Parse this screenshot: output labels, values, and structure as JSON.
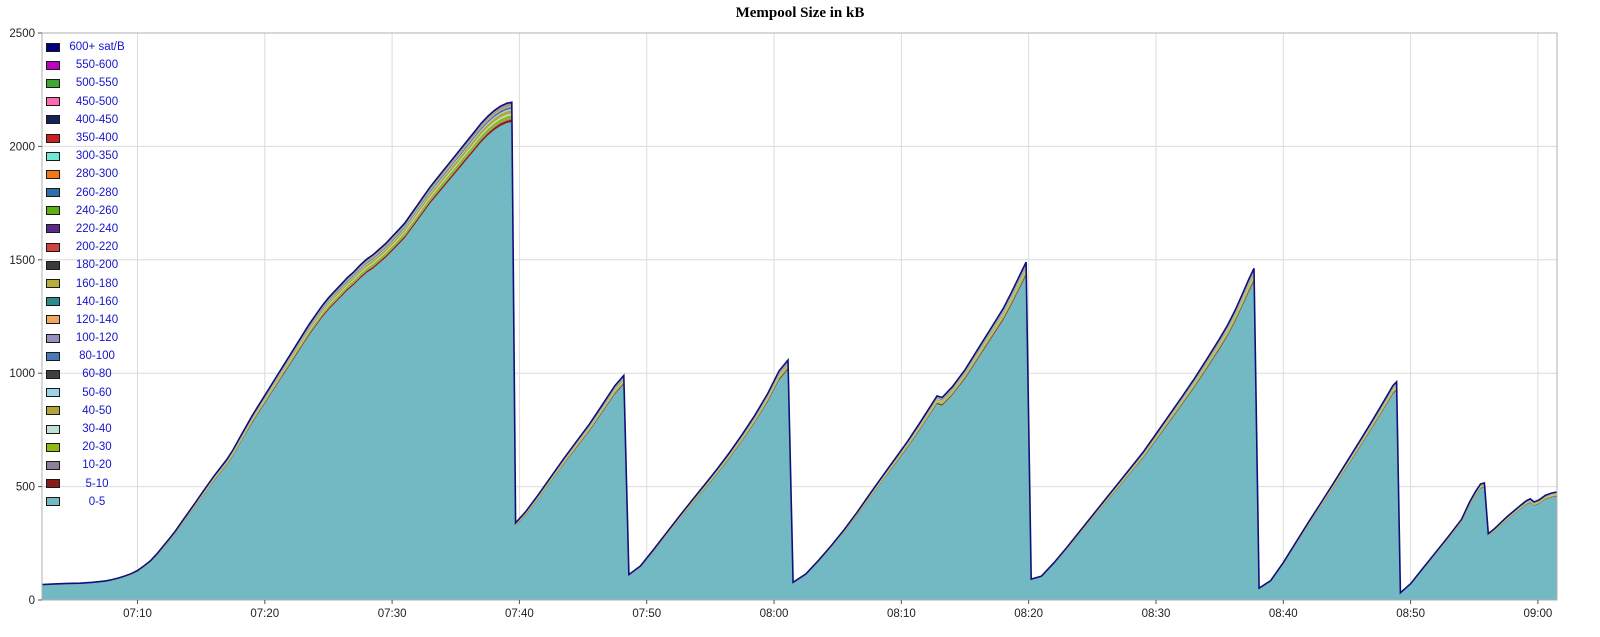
{
  "title": "Mempool Size in kB",
  "chart_data": {
    "type": "area",
    "stacked": true,
    "title": "Mempool Size in kB",
    "xlabel": "",
    "ylabel": "",
    "y_unit": "kB",
    "x_unit": "time of day (HH:MM)",
    "ylim": [
      0,
      2500
    ],
    "y_ticks": [
      0,
      500,
      1000,
      1500,
      2000,
      2500
    ],
    "x_ticks": [
      "07:10",
      "07:20",
      "07:30",
      "07:40",
      "07:50",
      "08:00",
      "08:10",
      "08:20",
      "08:30",
      "08:40",
      "08:50",
      "09:00"
    ],
    "x_tick_minutes": [
      10,
      20,
      30,
      40,
      50,
      60,
      70,
      80,
      90,
      100,
      110,
      120
    ],
    "x_range_minutes": [
      2.5,
      121.5
    ],
    "grid": true,
    "legend_position": "top-left",
    "legend": [
      {
        "label": "600+ sat/B",
        "color": "#000080",
        "fraction": 0.0015
      },
      {
        "label": "550-600",
        "color": "#bf00bf",
        "fraction": 0.0002
      },
      {
        "label": "500-550",
        "color": "#3fa535",
        "fraction": 0.0003
      },
      {
        "label": "450-500",
        "color": "#ff69b4",
        "fraction": 0.0003
      },
      {
        "label": "400-450",
        "color": "#14225a",
        "fraction": 0.0004
      },
      {
        "label": "350-400",
        "color": "#cc1f1f",
        "fraction": 0.0004
      },
      {
        "label": "300-350",
        "color": "#6fe8d8",
        "fraction": 0.0004
      },
      {
        "label": "280-300",
        "color": "#f07818",
        "fraction": 0.0004
      },
      {
        "label": "260-280",
        "color": "#2f6fa8",
        "fraction": 0.0004
      },
      {
        "label": "240-260",
        "color": "#5fae12",
        "fraction": 0.0004
      },
      {
        "label": "220-240",
        "color": "#5b2a86",
        "fraction": 0.0004
      },
      {
        "label": "200-220",
        "color": "#d14343",
        "fraction": 0.0004
      },
      {
        "label": "180-200",
        "color": "#3a3a3a",
        "fraction": 0.0004
      },
      {
        "label": "160-180",
        "color": "#b8ae3c",
        "fraction": 0.0008
      },
      {
        "label": "140-160",
        "color": "#2e8b8b",
        "fraction": 0.0008
      },
      {
        "label": "120-140",
        "color": "#f0a860",
        "fraction": 0.001
      },
      {
        "label": "100-120",
        "color": "#9b8fc0",
        "fraction": 0.001
      },
      {
        "label": "80-100",
        "color": "#4a7ab5",
        "fraction": 0.002
      },
      {
        "label": "60-80",
        "color": "#3f3f3f",
        "fraction": 0.0015
      },
      {
        "label": "50-60",
        "color": "#9fd4e8",
        "fraction": 0.003
      },
      {
        "label": "40-50",
        "color": "#b3a43b",
        "fraction": 0.007
      },
      {
        "label": "30-40",
        "color": "#bfe0d8",
        "fraction": 0.003
      },
      {
        "label": "20-30",
        "color": "#8fba16",
        "fraction": 0.007
      },
      {
        "label": "10-20",
        "color": "#8f7f96",
        "fraction": 0.002
      },
      {
        "label": "5-10",
        "color": "#8b1a1a",
        "fraction": 0.005
      },
      {
        "label": "0-5",
        "color": "#72b9c3",
        "fraction": 0.962
      }
    ],
    "outline_color": "#10107a",
    "grid_color": "#dcdcdc",
    "border_color": "#b0b0b0",
    "tick_text_color": "#222222",
    "total_series_note": "Total mempool size in kB over time; sawtooth drops occur when blocks are mined. Composition is dominated by the 0-5 sat/B band; fractions of other bands are visual estimates of the thin top stripes.",
    "points_minutes_kb": [
      [
        2.5,
        68
      ],
      [
        3.5,
        71
      ],
      [
        4.5,
        73
      ],
      [
        5.5,
        74
      ],
      [
        6.5,
        78
      ],
      [
        7.5,
        84
      ],
      [
        8,
        90
      ],
      [
        8.5,
        97
      ],
      [
        9,
        106
      ],
      [
        9.5,
        116
      ],
      [
        10,
        130
      ],
      [
        10.5,
        150
      ],
      [
        11,
        172
      ],
      [
        11.5,
        202
      ],
      [
        12,
        236
      ],
      [
        12.5,
        270
      ],
      [
        13,
        306
      ],
      [
        13.5,
        346
      ],
      [
        14,
        386
      ],
      [
        14.5,
        426
      ],
      [
        15,
        466
      ],
      [
        15.5,
        506
      ],
      [
        16,
        546
      ],
      [
        16.5,
        582
      ],
      [
        17,
        618
      ],
      [
        17.5,
        662
      ],
      [
        18,
        712
      ],
      [
        18.5,
        762
      ],
      [
        19,
        812
      ],
      [
        19.5,
        857
      ],
      [
        20,
        902
      ],
      [
        20.5,
        947
      ],
      [
        21,
        992
      ],
      [
        21.5,
        1037
      ],
      [
        22,
        1082
      ],
      [
        22.5,
        1127
      ],
      [
        23,
        1172
      ],
      [
        23.5,
        1217
      ],
      [
        24,
        1257
      ],
      [
        24.5,
        1297
      ],
      [
        25,
        1332
      ],
      [
        25.5,
        1362
      ],
      [
        26,
        1392
      ],
      [
        26.5,
        1422
      ],
      [
        27,
        1447
      ],
      [
        27.5,
        1477
      ],
      [
        28,
        1502
      ],
      [
        28.5,
        1522
      ],
      [
        29,
        1547
      ],
      [
        29.5,
        1572
      ],
      [
        30,
        1602
      ],
      [
        30.5,
        1632
      ],
      [
        31,
        1662
      ],
      [
        31.5,
        1702
      ],
      [
        32,
        1742
      ],
      [
        32.5,
        1782
      ],
      [
        33,
        1822
      ],
      [
        33.5,
        1857
      ],
      [
        34,
        1892
      ],
      [
        34.5,
        1927
      ],
      [
        35,
        1962
      ],
      [
        35.5,
        1997
      ],
      [
        36,
        2032
      ],
      [
        36.5,
        2067
      ],
      [
        37,
        2102
      ],
      [
        37.5,
        2132
      ],
      [
        38,
        2157
      ],
      [
        38.5,
        2177
      ],
      [
        39,
        2190
      ],
      [
        39.4,
        2195
      ],
      [
        39.7,
        340
      ],
      [
        40.5,
        390
      ],
      [
        41.5,
        465
      ],
      [
        42.5,
        545
      ],
      [
        43.5,
        625
      ],
      [
        44.5,
        700
      ],
      [
        45.5,
        775
      ],
      [
        46.5,
        860
      ],
      [
        47.5,
        945
      ],
      [
        48.2,
        990
      ],
      [
        48.6,
        112
      ],
      [
        49.5,
        150
      ],
      [
        50.5,
        220
      ],
      [
        51.5,
        292
      ],
      [
        52.5,
        365
      ],
      [
        53.5,
        435
      ],
      [
        54.5,
        505
      ],
      [
        55.5,
        575
      ],
      [
        56.5,
        650
      ],
      [
        57.5,
        730
      ],
      [
        58.5,
        815
      ],
      [
        59.5,
        910
      ],
      [
        60.4,
        1010
      ],
      [
        61.1,
        1058
      ],
      [
        61.5,
        78
      ],
      [
        62.5,
        115
      ],
      [
        63.5,
        175
      ],
      [
        64.5,
        240
      ],
      [
        65.5,
        310
      ],
      [
        66.5,
        385
      ],
      [
        67.5,
        465
      ],
      [
        68.5,
        545
      ],
      [
        69.5,
        622
      ],
      [
        70.5,
        700
      ],
      [
        71.5,
        785
      ],
      [
        72.3,
        855
      ],
      [
        72.8,
        900
      ],
      [
        73.2,
        893
      ],
      [
        74,
        940
      ],
      [
        75,
        1015
      ],
      [
        76,
        1105
      ],
      [
        77,
        1195
      ],
      [
        78,
        1285
      ],
      [
        78.6,
        1350
      ],
      [
        79.2,
        1420
      ],
      [
        79.8,
        1490
      ],
      [
        80.2,
        92
      ],
      [
        81,
        105
      ],
      [
        82,
        165
      ],
      [
        83,
        232
      ],
      [
        84,
        302
      ],
      [
        85,
        372
      ],
      [
        86,
        442
      ],
      [
        87,
        512
      ],
      [
        88,
        582
      ],
      [
        89,
        652
      ],
      [
        90,
        732
      ],
      [
        91,
        812
      ],
      [
        92,
        892
      ],
      [
        93,
        975
      ],
      [
        94,
        1062
      ],
      [
        95,
        1152
      ],
      [
        95.6,
        1210
      ],
      [
        96.2,
        1275
      ],
      [
        96.8,
        1350
      ],
      [
        97.3,
        1415
      ],
      [
        97.7,
        1462
      ],
      [
        98.1,
        52
      ],
      [
        99,
        85
      ],
      [
        100,
        165
      ],
      [
        101,
        255
      ],
      [
        102,
        345
      ],
      [
        103,
        432
      ],
      [
        104,
        520
      ],
      [
        105,
        610
      ],
      [
        106,
        700
      ],
      [
        107,
        792
      ],
      [
        107.6,
        848
      ],
      [
        108.2,
        905
      ],
      [
        108.6,
        945
      ],
      [
        108.9,
        962
      ],
      [
        109.2,
        32
      ],
      [
        110,
        72
      ],
      [
        111,
        142
      ],
      [
        112,
        212
      ],
      [
        113,
        282
      ],
      [
        114,
        355
      ],
      [
        114.6,
        428
      ],
      [
        115.1,
        478
      ],
      [
        115.5,
        512
      ],
      [
        115.8,
        516
      ],
      [
        116.1,
        292
      ],
      [
        116.6,
        315
      ],
      [
        117.1,
        342
      ],
      [
        117.6,
        368
      ],
      [
        118.1,
        392
      ],
      [
        118.6,
        416
      ],
      [
        119.1,
        438
      ],
      [
        119.4,
        446
      ],
      [
        119.7,
        432
      ],
      [
        120.1,
        442
      ],
      [
        120.6,
        462
      ],
      [
        121.1,
        472
      ],
      [
        121.5,
        476
      ]
    ]
  }
}
